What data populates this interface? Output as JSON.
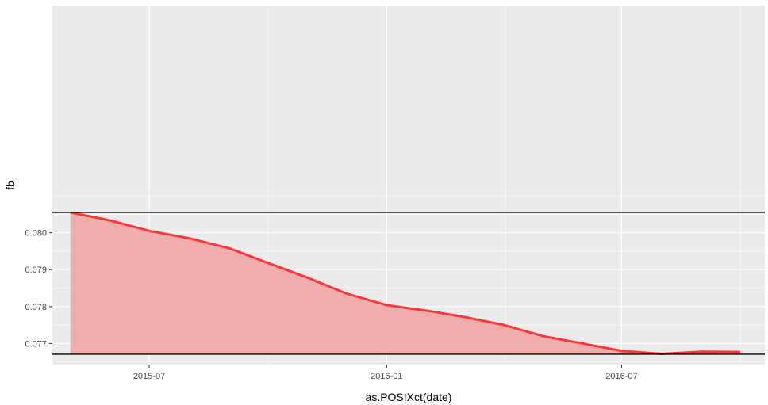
{
  "chart_data": {
    "type": "area",
    "title": "",
    "xlabel": "as.POSIXct(date)",
    "ylabel": "fb",
    "x_ticks": [
      "2015-07",
      "2016-01",
      "2016-07"
    ],
    "y_ticks": [
      "0.077",
      "0.078",
      "0.079",
      "0.080"
    ],
    "xlim": [
      "2015-04-17",
      "2016-10-20"
    ],
    "ylim": [
      0.07643,
      0.08615
    ],
    "grid": true,
    "legend": "none",
    "hlines": [
      0.08055,
      0.07671
    ],
    "series": [
      {
        "x": [
          "2015-05-01",
          "2015-06-01",
          "2015-07-01",
          "2015-08-01",
          "2015-09-01",
          "2015-10-01",
          "2015-11-01",
          "2015-12-01",
          "2016-01-01",
          "2016-02-01",
          "2016-03-01",
          "2016-04-01",
          "2016-05-01",
          "2016-06-01",
          "2016-07-01",
          "2016-08-01",
          "2016-09-01",
          "2016-10-01"
        ],
        "values": [
          0.08055,
          0.08033,
          0.08005,
          0.07985,
          0.07958,
          0.07918,
          0.07878,
          0.07835,
          0.07804,
          0.07789,
          0.07772,
          0.0775,
          0.0772,
          0.077,
          0.0768,
          0.07672,
          0.07678,
          0.07677
        ]
      }
    ],
    "colors": {
      "line": "#F8393B",
      "area": "#F1A7A7",
      "panel": "#EBEBEB",
      "grid_major": "#FFFFFF",
      "hline": "#000000"
    }
  }
}
